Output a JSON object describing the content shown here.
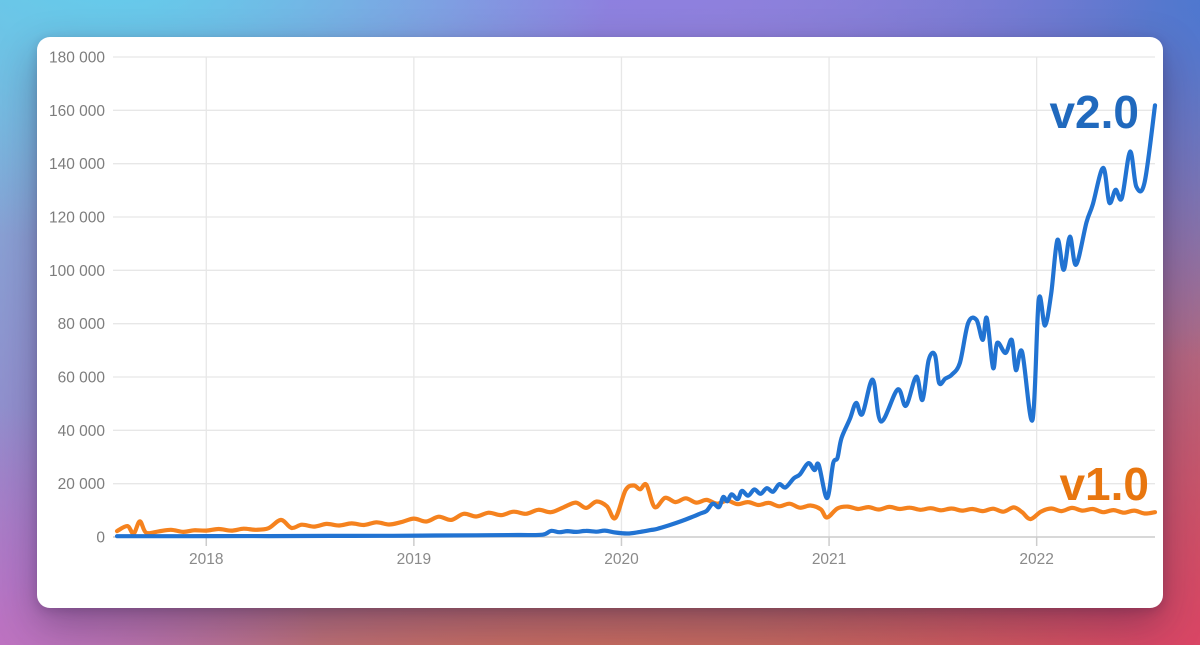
{
  "chart_data": {
    "type": "line",
    "title": "",
    "xlabel": "",
    "ylabel": "",
    "grid": true,
    "x_axis": {
      "range": [
        2017.57,
        2022.57
      ],
      "ticks": [
        2018,
        2019,
        2020,
        2021,
        2022
      ],
      "tick_labels": [
        "2018",
        "2019",
        "2020",
        "2021",
        "2022"
      ]
    },
    "y_axis": {
      "range": [
        0,
        180000
      ],
      "ticks": [
        0,
        20000,
        40000,
        60000,
        80000,
        100000,
        120000,
        140000,
        160000,
        180000
      ],
      "tick_labels": [
        "0",
        "20 000",
        "40 000",
        "60 000",
        "80 000",
        "100 000",
        "120 000",
        "140 000",
        "160 000",
        "180 000"
      ]
    },
    "axis_text_color": "#7d7d7d",
    "gridline_color": "#e7e7e7",
    "axis_line_color": "#cccccc",
    "legend": {
      "position": "inline-right"
    },
    "series": [
      {
        "name": "v2.0",
        "color": "#2173d2",
        "label_color": "#2069bd",
        "points": [
          [
            2017.57,
            300
          ],
          [
            2017.8,
            300
          ],
          [
            2018.0,
            350
          ],
          [
            2018.3,
            350
          ],
          [
            2018.6,
            400
          ],
          [
            2018.9,
            450
          ],
          [
            2019.1,
            550
          ],
          [
            2019.3,
            650
          ],
          [
            2019.5,
            750
          ],
          [
            2019.62,
            850
          ],
          [
            2019.66,
            2300
          ],
          [
            2019.7,
            1800
          ],
          [
            2019.74,
            2200
          ],
          [
            2019.78,
            1900
          ],
          [
            2019.83,
            2300
          ],
          [
            2019.88,
            2000
          ],
          [
            2019.92,
            2400
          ],
          [
            2019.97,
            1700
          ],
          [
            2020.03,
            1300
          ],
          [
            2020.09,
            1900
          ],
          [
            2020.14,
            2600
          ],
          [
            2020.17,
            3000
          ],
          [
            2020.23,
            4400
          ],
          [
            2020.29,
            6000
          ],
          [
            2020.35,
            7800
          ],
          [
            2020.38,
            8800
          ],
          [
            2020.41,
            9800
          ],
          [
            2020.44,
            12500
          ],
          [
            2020.47,
            11200
          ],
          [
            2020.49,
            15000
          ],
          [
            2020.51,
            13400
          ],
          [
            2020.53,
            16000
          ],
          [
            2020.56,
            14200
          ],
          [
            2020.58,
            17300
          ],
          [
            2020.61,
            15500
          ],
          [
            2020.64,
            17800
          ],
          [
            2020.67,
            16200
          ],
          [
            2020.7,
            18300
          ],
          [
            2020.73,
            17000
          ],
          [
            2020.76,
            19800
          ],
          [
            2020.79,
            18600
          ],
          [
            2020.83,
            22000
          ],
          [
            2020.86,
            23500
          ],
          [
            2020.9,
            27700
          ],
          [
            2020.93,
            25100
          ],
          [
            2020.95,
            27100
          ],
          [
            2020.99,
            14600
          ],
          [
            2021.02,
            27700
          ],
          [
            2021.04,
            29600
          ],
          [
            2021.06,
            37100
          ],
          [
            2021.1,
            44200
          ],
          [
            2021.13,
            50300
          ],
          [
            2021.16,
            46100
          ],
          [
            2021.21,
            59000
          ],
          [
            2021.25,
            43300
          ],
          [
            2021.33,
            55300
          ],
          [
            2021.37,
            49200
          ],
          [
            2021.42,
            60100
          ],
          [
            2021.45,
            51400
          ],
          [
            2021.48,
            66400
          ],
          [
            2021.51,
            68300
          ],
          [
            2021.53,
            57800
          ],
          [
            2021.56,
            59400
          ],
          [
            2021.59,
            60800
          ],
          [
            2021.63,
            65300
          ],
          [
            2021.67,
            80300
          ],
          [
            2021.71,
            81400
          ],
          [
            2021.74,
            73900
          ],
          [
            2021.76,
            82100
          ],
          [
            2021.79,
            63400
          ],
          [
            2021.81,
            72800
          ],
          [
            2021.85,
            69000
          ],
          [
            2021.88,
            73900
          ],
          [
            2021.9,
            62600
          ],
          [
            2021.93,
            69400
          ],
          [
            2021.98,
            43900
          ],
          [
            2022.01,
            88900
          ],
          [
            2022.04,
            79300
          ],
          [
            2022.07,
            91300
          ],
          [
            2022.1,
            111400
          ],
          [
            2022.13,
            100200
          ],
          [
            2022.16,
            112600
          ],
          [
            2022.19,
            102100
          ],
          [
            2022.24,
            118000
          ],
          [
            2022.27,
            124600
          ],
          [
            2022.32,
            138400
          ],
          [
            2022.35,
            125400
          ],
          [
            2022.38,
            130200
          ],
          [
            2022.41,
            127100
          ],
          [
            2022.45,
            144500
          ],
          [
            2022.48,
            131400
          ],
          [
            2022.52,
            133000
          ],
          [
            2022.57,
            161900
          ]
        ]
      },
      {
        "name": "v1.0",
        "color": "#f5821e",
        "label_color": "#e8760f",
        "points": [
          [
            2017.57,
            2200
          ],
          [
            2017.62,
            4100
          ],
          [
            2017.65,
            1300
          ],
          [
            2017.68,
            5900
          ],
          [
            2017.71,
            1600
          ],
          [
            2017.77,
            2100
          ],
          [
            2017.83,
            2700
          ],
          [
            2017.89,
            1900
          ],
          [
            2017.94,
            2500
          ],
          [
            2018.0,
            2400
          ],
          [
            2018.06,
            3000
          ],
          [
            2018.12,
            2400
          ],
          [
            2018.18,
            3100
          ],
          [
            2018.24,
            2700
          ],
          [
            2018.3,
            3300
          ],
          [
            2018.36,
            6400
          ],
          [
            2018.41,
            3400
          ],
          [
            2018.46,
            4600
          ],
          [
            2018.52,
            3900
          ],
          [
            2018.58,
            4900
          ],
          [
            2018.64,
            4300
          ],
          [
            2018.7,
            5100
          ],
          [
            2018.76,
            4500
          ],
          [
            2018.82,
            5500
          ],
          [
            2018.88,
            4700
          ],
          [
            2018.94,
            5600
          ],
          [
            2019.0,
            6900
          ],
          [
            2019.06,
            5800
          ],
          [
            2019.12,
            7600
          ],
          [
            2019.18,
            6400
          ],
          [
            2019.24,
            8700
          ],
          [
            2019.3,
            7700
          ],
          [
            2019.36,
            9100
          ],
          [
            2019.42,
            8200
          ],
          [
            2019.48,
            9500
          ],
          [
            2019.54,
            8700
          ],
          [
            2019.6,
            10200
          ],
          [
            2019.66,
            9300
          ],
          [
            2019.72,
            11100
          ],
          [
            2019.78,
            12900
          ],
          [
            2019.83,
            10900
          ],
          [
            2019.88,
            13300
          ],
          [
            2019.93,
            11500
          ],
          [
            2019.97,
            7100
          ],
          [
            2020.02,
            17600
          ],
          [
            2020.06,
            19300
          ],
          [
            2020.09,
            17900
          ],
          [
            2020.12,
            19600
          ],
          [
            2020.16,
            11200
          ],
          [
            2020.21,
            14700
          ],
          [
            2020.26,
            13100
          ],
          [
            2020.31,
            14500
          ],
          [
            2020.36,
            12900
          ],
          [
            2020.41,
            13900
          ],
          [
            2020.46,
            12500
          ],
          [
            2020.51,
            13600
          ],
          [
            2020.56,
            12300
          ],
          [
            2020.61,
            13100
          ],
          [
            2020.66,
            12000
          ],
          [
            2020.71,
            12800
          ],
          [
            2020.76,
            11500
          ],
          [
            2020.81,
            12500
          ],
          [
            2020.86,
            11000
          ],
          [
            2020.91,
            11800
          ],
          [
            2020.96,
            10400
          ],
          [
            2020.99,
            7300
          ],
          [
            2021.04,
            10700
          ],
          [
            2021.09,
            11400
          ],
          [
            2021.14,
            10500
          ],
          [
            2021.19,
            11200
          ],
          [
            2021.24,
            10300
          ],
          [
            2021.29,
            11300
          ],
          [
            2021.34,
            10500
          ],
          [
            2021.39,
            11000
          ],
          [
            2021.44,
            10200
          ],
          [
            2021.49,
            10800
          ],
          [
            2021.54,
            10000
          ],
          [
            2021.59,
            10700
          ],
          [
            2021.64,
            9900
          ],
          [
            2021.69,
            10500
          ],
          [
            2021.74,
            9700
          ],
          [
            2021.79,
            10600
          ],
          [
            2021.84,
            9500
          ],
          [
            2021.89,
            11100
          ],
          [
            2021.93,
            9300
          ],
          [
            2021.97,
            6700
          ],
          [
            2022.02,
            9500
          ],
          [
            2022.07,
            10700
          ],
          [
            2022.12,
            9700
          ],
          [
            2022.17,
            10900
          ],
          [
            2022.22,
            9900
          ],
          [
            2022.27,
            10500
          ],
          [
            2022.32,
            9300
          ],
          [
            2022.37,
            10100
          ],
          [
            2022.42,
            9100
          ],
          [
            2022.47,
            9900
          ],
          [
            2022.52,
            8800
          ],
          [
            2022.57,
            9300
          ]
        ]
      }
    ]
  }
}
